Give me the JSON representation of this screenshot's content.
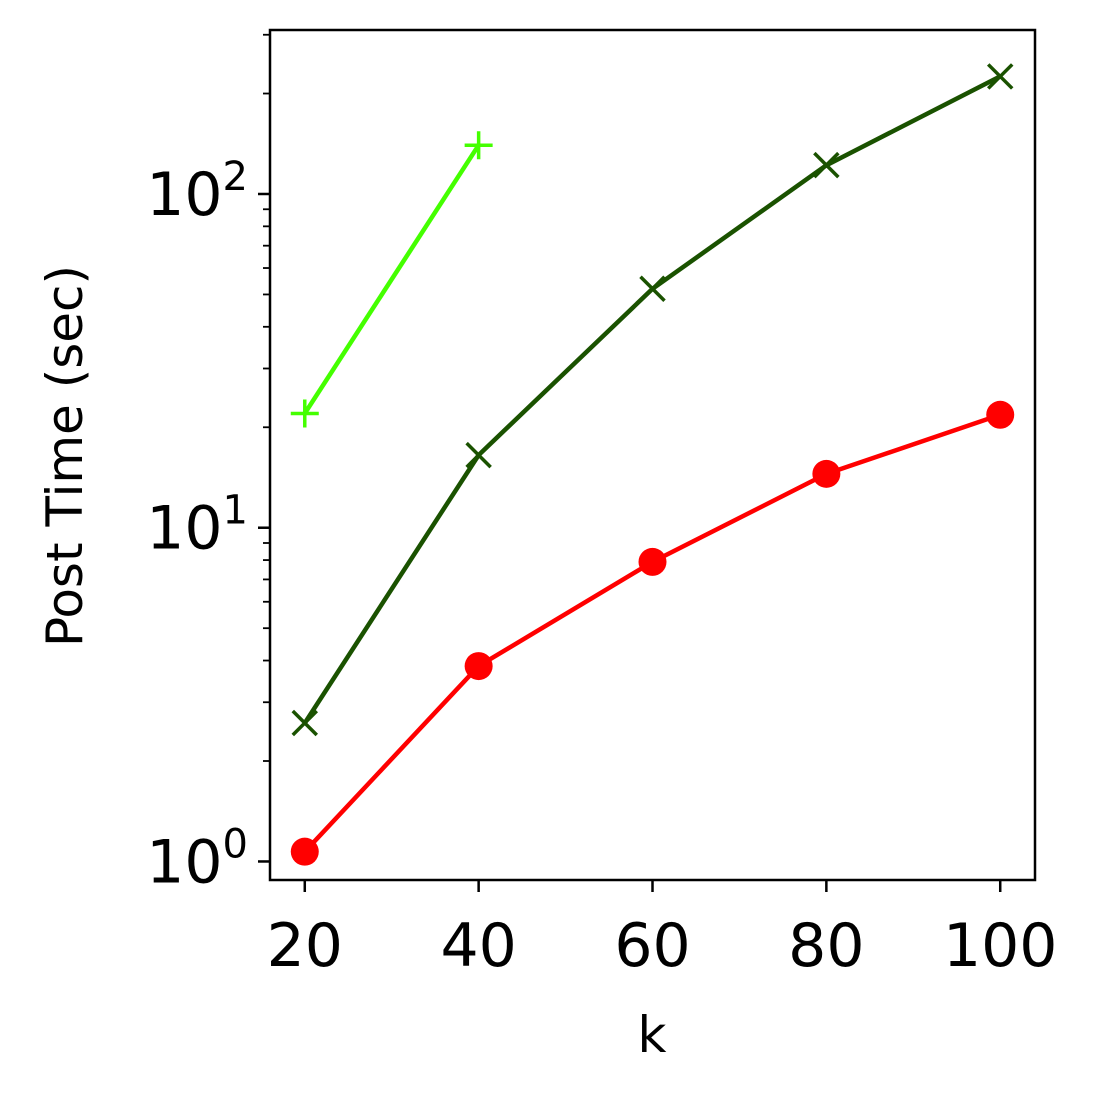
{
  "chart_data": {
    "type": "line",
    "title": "",
    "xlabel": "k",
    "ylabel": "Post Time (sec)",
    "xlim": [
      16,
      104
    ],
    "ylim": [
      0.88,
      310
    ],
    "yscale": "log",
    "grid": false,
    "xticks": [
      20,
      40,
      60,
      80,
      100
    ],
    "yticks": [
      {
        "value": 1,
        "base": "10",
        "exp": "0"
      },
      {
        "value": 10,
        "base": "10",
        "exp": "1"
      },
      {
        "value": 100,
        "base": "10",
        "exp": "2"
      }
    ],
    "series": [
      {
        "color": "#44ff00",
        "marker": "plus",
        "x": [
          20,
          40
        ],
        "values": [
          22,
          140
        ]
      },
      {
        "color": "#1a5200",
        "marker": "x",
        "x": [
          20,
          40,
          60,
          80,
          100
        ],
        "values": [
          2.6,
          16.5,
          52,
          122,
          225
        ]
      },
      {
        "color": "#ff0000",
        "marker": "circle",
        "x": [
          20,
          40,
          60,
          80,
          100
        ],
        "values": [
          1.07,
          3.85,
          7.9,
          14.5,
          21.8
        ]
      }
    ]
  }
}
